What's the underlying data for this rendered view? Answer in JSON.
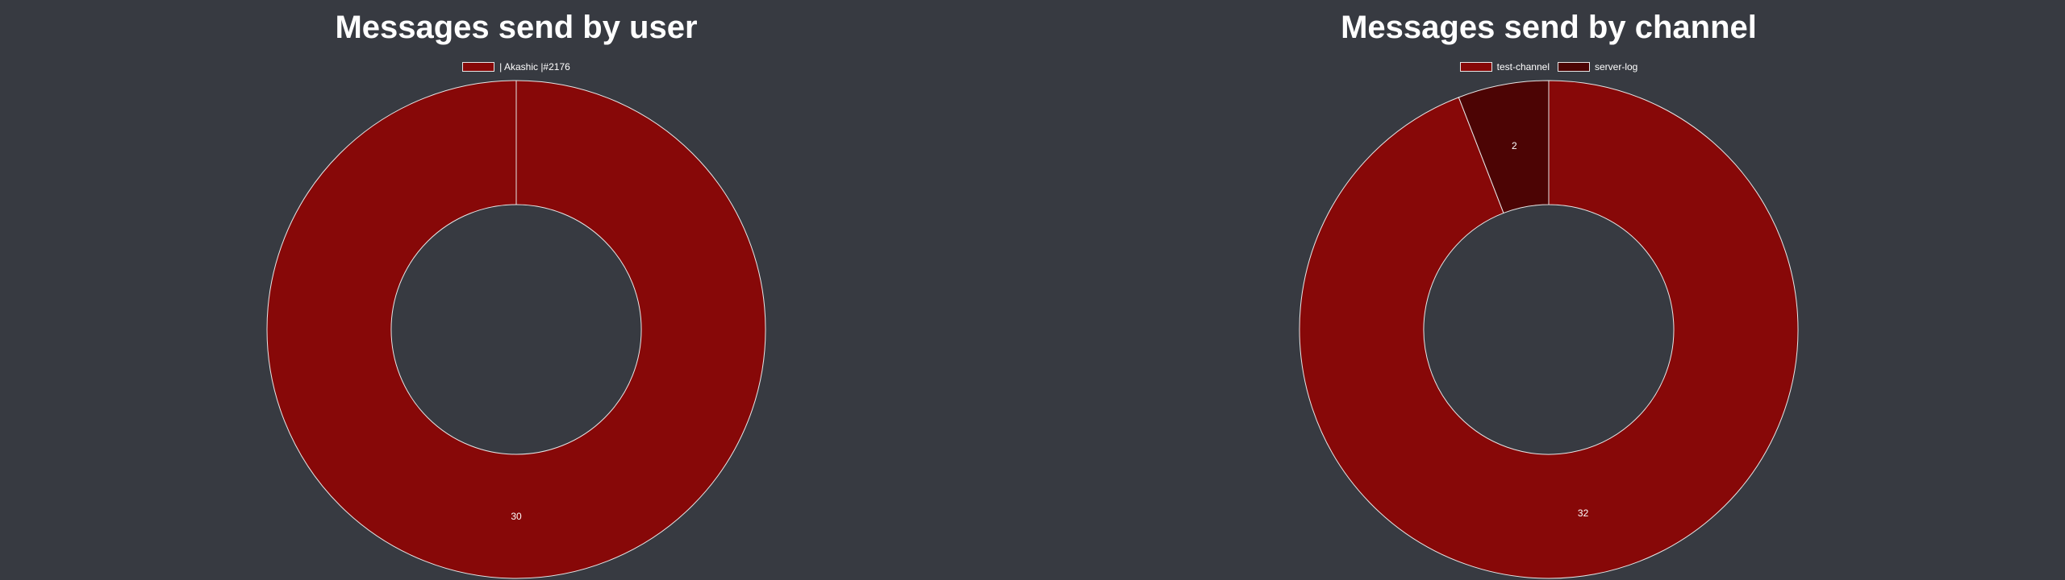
{
  "chart_data": [
    {
      "type": "pie",
      "title": "Messages send by user",
      "categories": [
        "| Akashic |#2176"
      ],
      "values": [
        30
      ],
      "colors": [
        "#870808"
      ],
      "legend_position": "top"
    },
    {
      "type": "pie",
      "title": "Messages send by channel",
      "categories": [
        "test-channel",
        "server-log"
      ],
      "values": [
        32,
        2
      ],
      "colors": [
        "#870808",
        "#4c0404"
      ],
      "legend_position": "top"
    }
  ],
  "colors": {
    "background": "#373a41",
    "slice_border": "#e6e6e6",
    "text": "#ffffff"
  }
}
